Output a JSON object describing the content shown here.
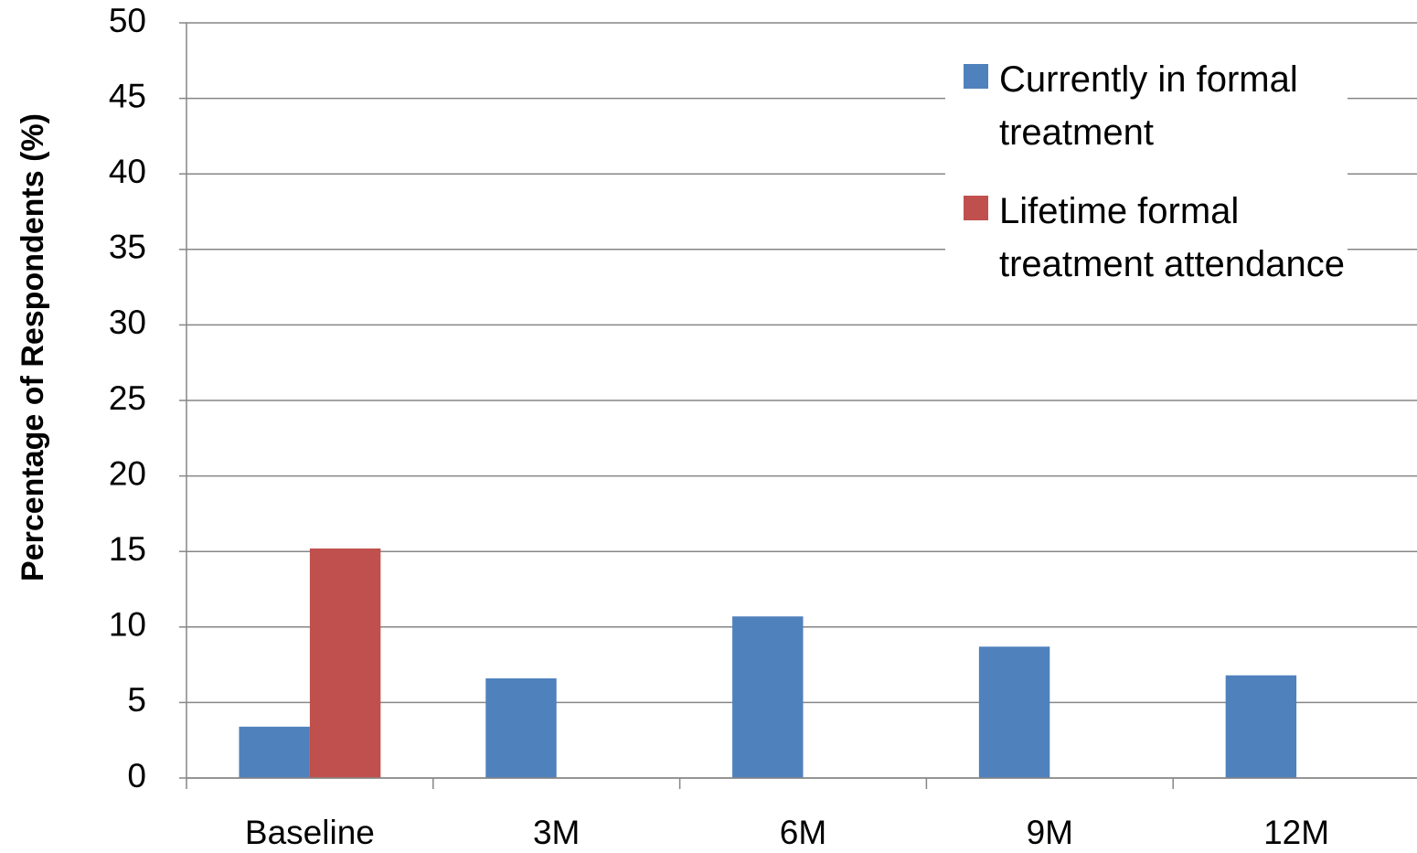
{
  "chart_data": {
    "type": "bar",
    "y_label": "Percentage of Respondents (%)",
    "categories": [
      "Baseline",
      "3M",
      "6M",
      "9M",
      "12M"
    ],
    "series": [
      {
        "name": "Currently in formal treatment",
        "color": "#4f81bd",
        "values": [
          3.4,
          6.6,
          10.7,
          8.7,
          6.8
        ]
      },
      {
        "name": "Lifetime formal treatment attendance",
        "color": "#c0504d",
        "values": [
          15.2,
          null,
          null,
          null,
          null
        ]
      }
    ],
    "ylim": [
      0,
      50
    ],
    "yticks": [
      0,
      5,
      10,
      15,
      20,
      25,
      30,
      35,
      40,
      45,
      50
    ],
    "grid": true,
    "legend": "upper right"
  }
}
